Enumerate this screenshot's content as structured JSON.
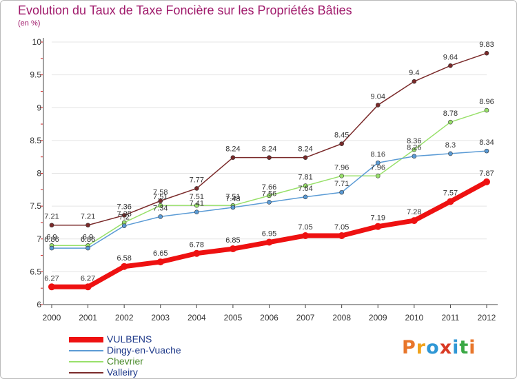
{
  "title": "Evolution du Taux de Taxe Foncière sur les Propriétés Bâties",
  "unit_label": "(en %)",
  "logo": {
    "text": "Proxiti",
    "colors": [
      "#e8762b",
      "#f0a21c",
      "#2f97d5",
      "#d93a24",
      "#2f97d5",
      "#3aa845",
      "#e8762b"
    ]
  },
  "chart_data": {
    "type": "line",
    "title": "Evolution du Taux de Taxe Foncière sur les Propriétés Bâties",
    "ylabel": "(en %)",
    "xlabel": "",
    "x": [
      "2000",
      "2001",
      "2002",
      "2003",
      "2004",
      "2005",
      "2006",
      "2007",
      "2008",
      "2009",
      "2010",
      "2011",
      "2012"
    ],
    "ylim": [
      6,
      10
    ],
    "yticks": [
      "6",
      "6.5",
      "7",
      "7.5",
      "8",
      "8.5",
      "9",
      "9.5",
      "10"
    ],
    "legend_position": "bottom-left",
    "series": [
      {
        "name": "VULBENS",
        "color": "#ee1111",
        "width": 7,
        "values": [
          6.27,
          6.27,
          6.58,
          6.65,
          6.78,
          6.85,
          6.95,
          7.05,
          7.05,
          7.19,
          7.28,
          7.57,
          7.87
        ],
        "labels": [
          "6.27",
          "6.27",
          "6.58",
          "6.65",
          "6.78",
          "6.85",
          "6.95",
          "7.05",
          "7.05",
          "7.19",
          "7.28",
          "7.57",
          "7.87"
        ]
      },
      {
        "name": "Dingy-en-Vuache",
        "color": "#5b9bd5",
        "width": 1.5,
        "values": [
          6.86,
          6.86,
          7.2,
          7.34,
          7.41,
          7.48,
          7.56,
          7.64,
          7.71,
          8.16,
          8.26,
          8.3,
          8.34
        ],
        "labels": [
          "6.86",
          "6.86",
          "7.2",
          "7.34",
          "7.41",
          "7.48",
          "7.56",
          "7.64",
          "7.71",
          "8.16",
          "8.26",
          "8.3",
          "8.34"
        ]
      },
      {
        "name": "Chevrier",
        "color": "#98e06a",
        "width": 1.5,
        "values": [
          6.9,
          6.9,
          7.25,
          7.51,
          7.51,
          7.51,
          7.66,
          7.81,
          7.96,
          7.96,
          8.36,
          8.78,
          8.96
        ],
        "labels": [
          "6.9",
          "6.9",
          "7.25",
          "7.51",
          "7.51",
          "7.51",
          "7.66",
          "7.81",
          "7.96",
          "7.96",
          "8.36",
          "8.78",
          "8.96"
        ]
      },
      {
        "name": "Valleiry",
        "color": "#7a2a2a",
        "width": 1.5,
        "values": [
          7.21,
          7.21,
          7.36,
          7.58,
          7.77,
          8.24,
          8.24,
          8.24,
          8.45,
          9.04,
          9.4,
          9.64,
          9.83
        ],
        "labels": [
          "7.21",
          "7.21",
          "7.36",
          "7.58",
          "7.77",
          "8.24",
          "8.24",
          "8.24",
          "8.45",
          "9.04",
          "9.4",
          "9.64",
          "9.83"
        ]
      }
    ]
  }
}
